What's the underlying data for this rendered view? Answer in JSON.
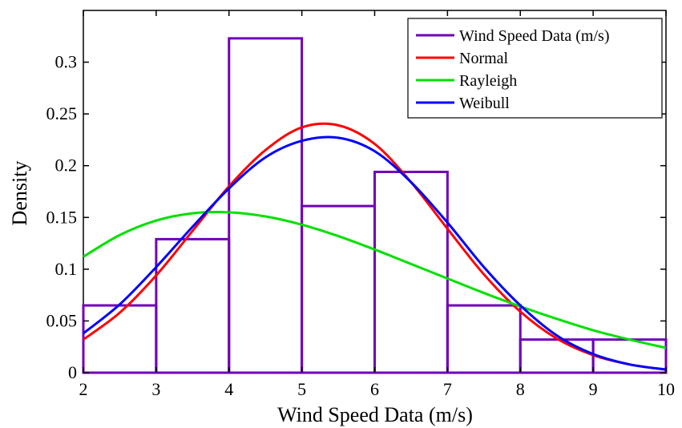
{
  "chart_data": {
    "type": "histogram_with_fits",
    "xlabel": "Wind Speed Data (m/s)",
    "ylabel": "Density",
    "xlim": [
      2,
      10
    ],
    "ylim": [
      0,
      0.35
    ],
    "x_ticks": [
      "2",
      "3",
      "4",
      "5",
      "6",
      "7",
      "8",
      "9",
      "10"
    ],
    "y_ticks": [
      "0",
      "0.05",
      "0.1",
      "0.15",
      "0.2",
      "0.25",
      "0.3"
    ],
    "grid": false,
    "legend_position": "top-right",
    "histogram": {
      "name": "Wind Speed Data (m/s)",
      "color": "#7000B8",
      "bin_edges": [
        2,
        3,
        4,
        5,
        6,
        7,
        8,
        9,
        10
      ],
      "densities": [
        0.065,
        0.129,
        0.323,
        0.161,
        0.194,
        0.065,
        0.032,
        0.032
      ]
    },
    "series": [
      {
        "name": "Normal",
        "color": "#FF0000",
        "x": [
          2,
          2.5,
          3,
          3.5,
          4,
          4.5,
          5,
          5.5,
          6,
          6.5,
          7,
          7.5,
          8,
          8.5,
          9,
          9.5,
          10
        ],
        "y": [
          0.032,
          0.058,
          0.094,
          0.137,
          0.18,
          0.215,
          0.237,
          0.239,
          0.221,
          0.184,
          0.139,
          0.095,
          0.059,
          0.033,
          0.017,
          0.008,
          0.003
        ]
      },
      {
        "name": "Rayleigh",
        "color": "#00E000",
        "x": [
          2,
          2.5,
          3,
          3.5,
          4,
          4.5,
          5,
          5.5,
          6,
          6.5,
          7,
          7.5,
          8,
          8.5,
          9,
          9.5,
          10
        ],
        "y": [
          0.112,
          0.133,
          0.147,
          0.154,
          0.155,
          0.151,
          0.143,
          0.132,
          0.119,
          0.105,
          0.091,
          0.077,
          0.064,
          0.052,
          0.041,
          0.032,
          0.024
        ]
      },
      {
        "name": "Weibull",
        "color": "#0000FF",
        "x": [
          2,
          2.5,
          3,
          3.5,
          4,
          4.5,
          5,
          5.5,
          6,
          6.5,
          7,
          7.5,
          8,
          8.5,
          9,
          9.5,
          10
        ],
        "y": [
          0.038,
          0.066,
          0.102,
          0.141,
          0.178,
          0.208,
          0.224,
          0.227,
          0.214,
          0.184,
          0.145,
          0.102,
          0.065,
          0.036,
          0.018,
          0.008,
          0.003
        ]
      }
    ]
  }
}
